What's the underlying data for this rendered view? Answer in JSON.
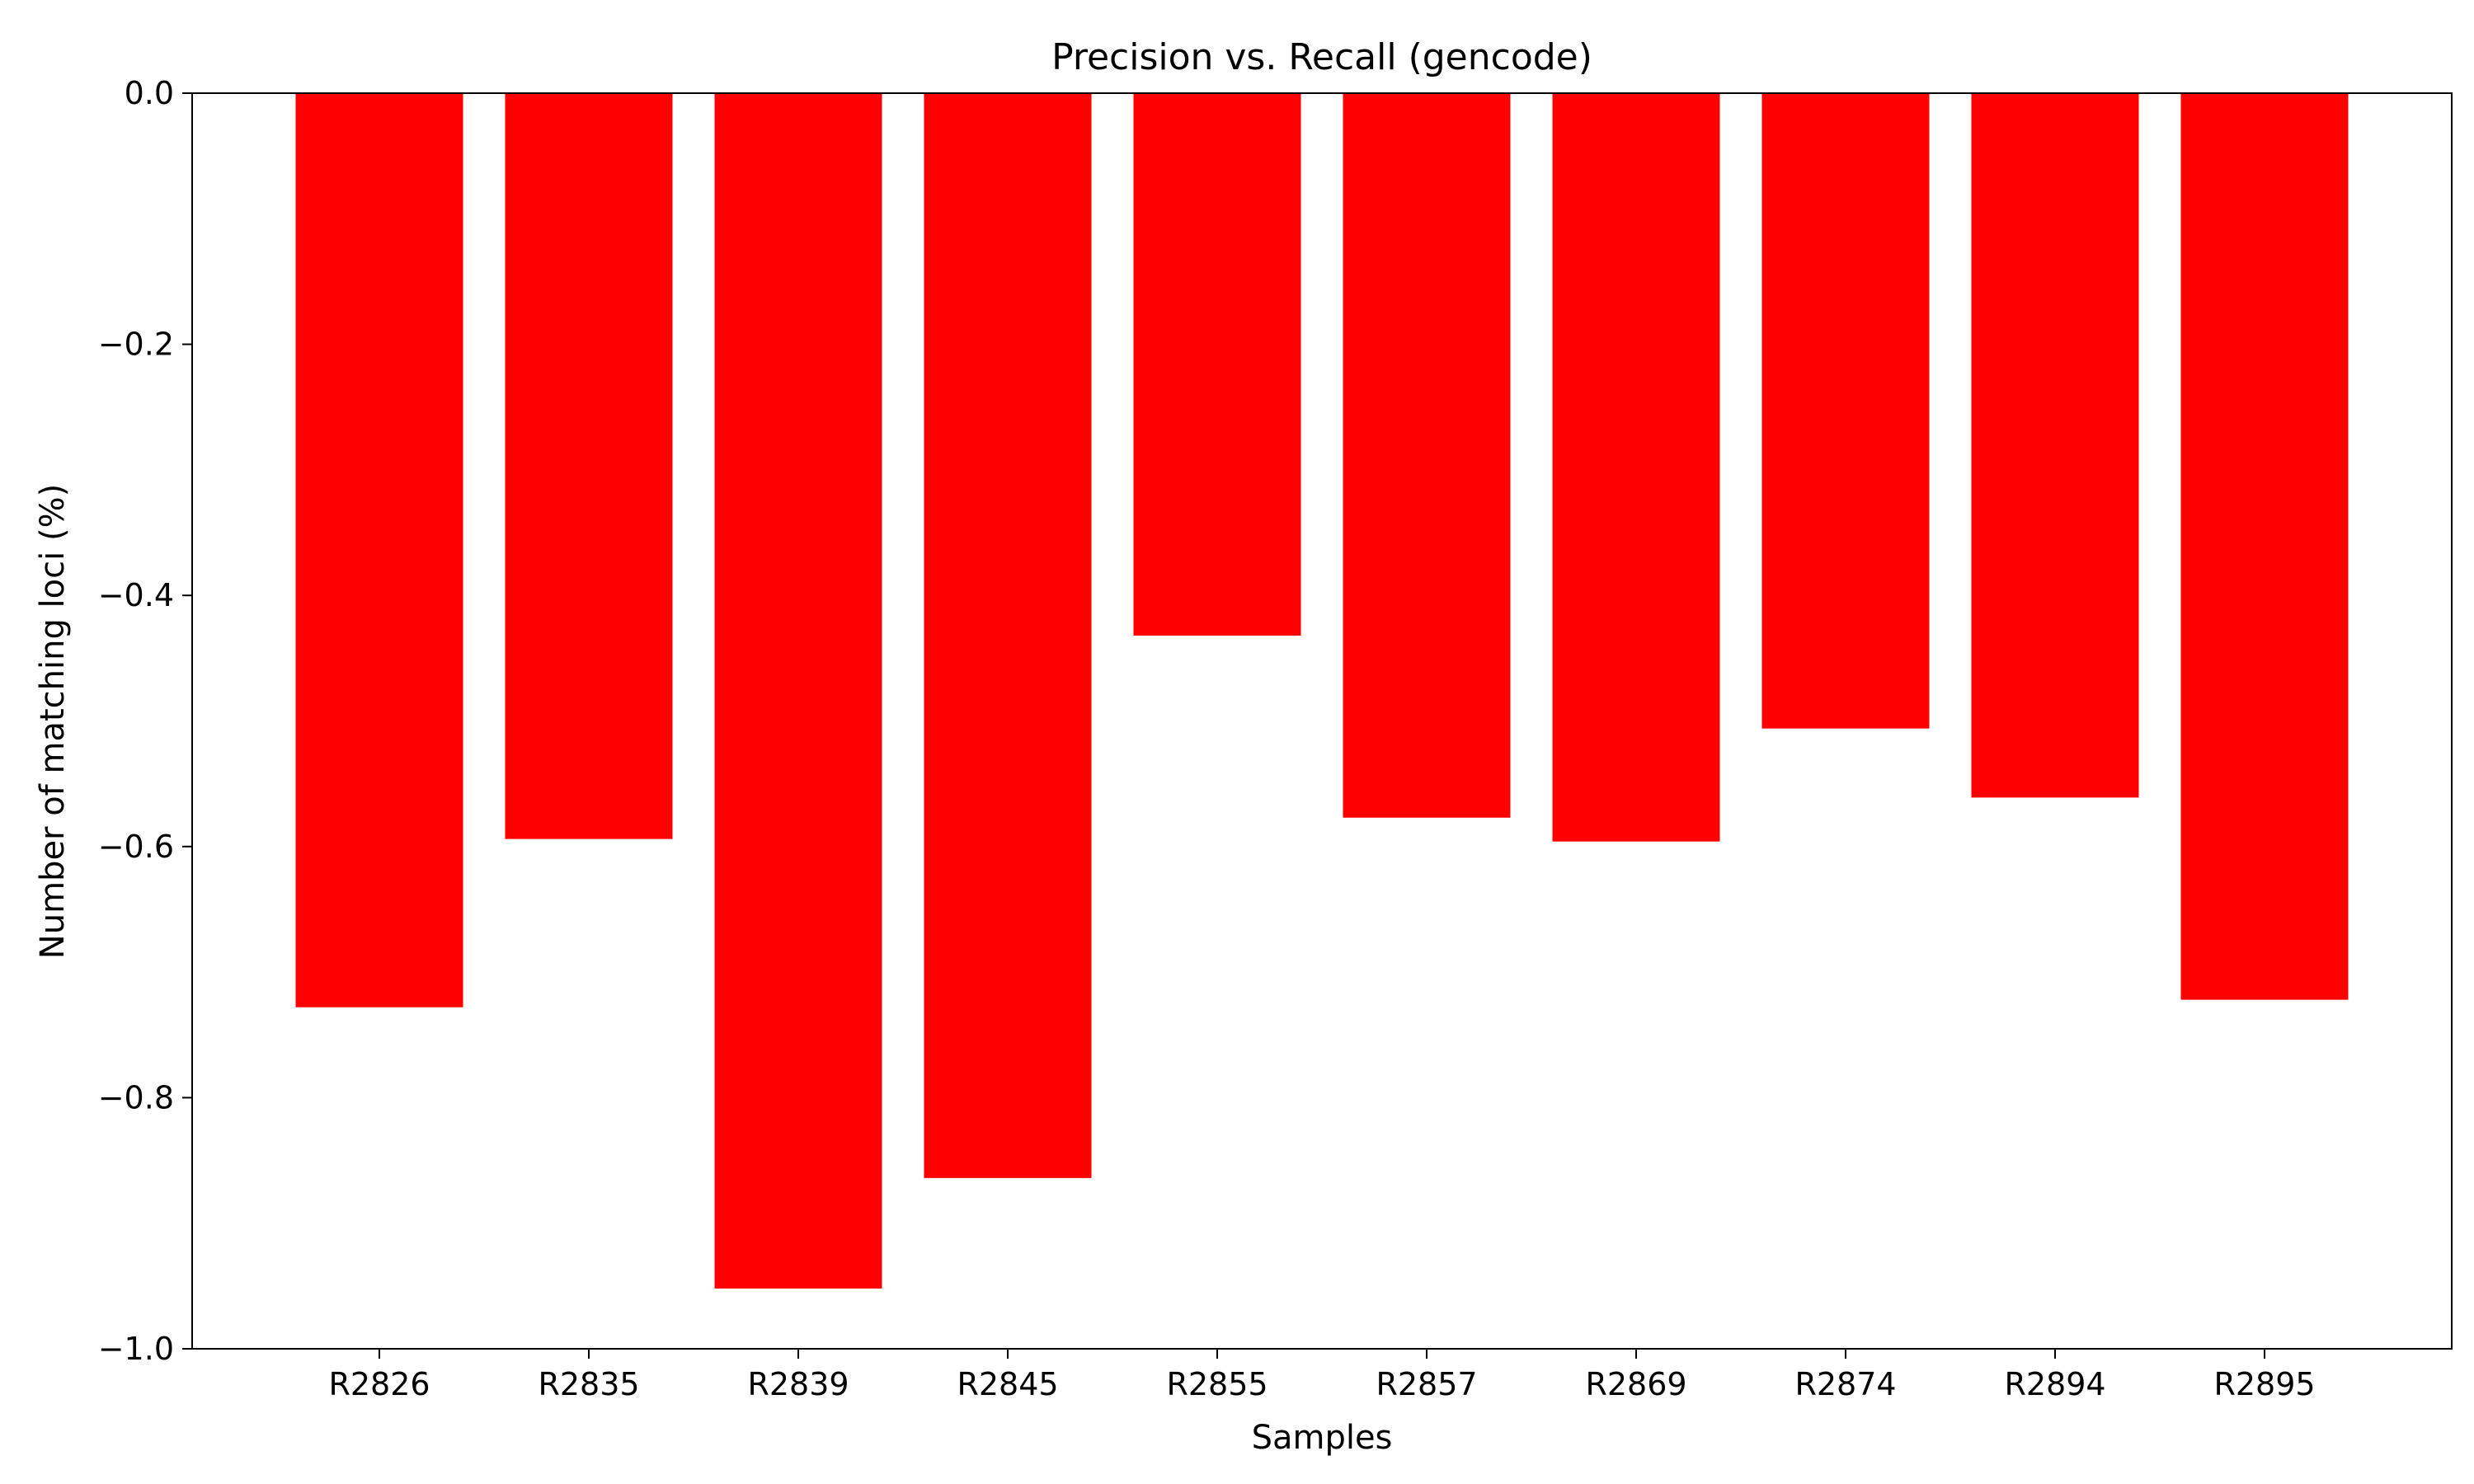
{
  "chart_data": {
    "type": "bar",
    "title": "Precision vs. Recall (gencode)",
    "xlabel": "Samples",
    "ylabel": "Number of matching loci (%)",
    "categories": [
      "R2826",
      "R2835",
      "R2839",
      "R2845",
      "R2855",
      "R2857",
      "R2869",
      "R2874",
      "R2894",
      "R2895"
    ],
    "values": [
      -0.728,
      -0.594,
      -0.952,
      -0.864,
      -0.432,
      -0.577,
      -0.596,
      -0.506,
      -0.561,
      -0.722
    ],
    "ylim": [
      -1.0,
      0.0
    ],
    "yticks": [
      0.0,
      -0.2,
      -0.4,
      -0.6,
      -0.8,
      -1.0
    ],
    "ytick_labels": [
      "0.0",
      "−0.2",
      "−0.4",
      "−0.6",
      "−0.8",
      "−1.0"
    ],
    "bar_color": "#ff0000",
    "grid": false,
    "legend": "none"
  }
}
